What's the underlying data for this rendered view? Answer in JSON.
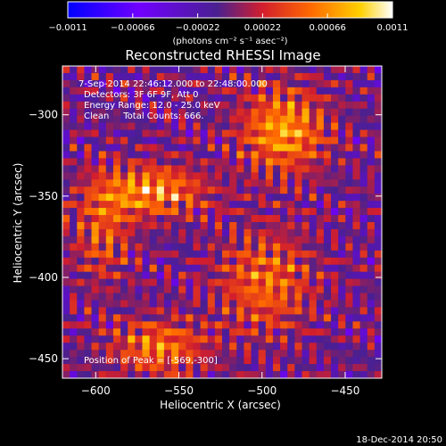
{
  "chart_data": {
    "type": "heatmap",
    "title": "Reconstructed RHESSI Image",
    "xlabel": "Heliocentric X (arcsec)",
    "ylabel": "Heliocentric Y (arcsec)",
    "xlim": [
      -620,
      -428
    ],
    "ylim": [
      -462,
      -270
    ],
    "xticks": [
      -600,
      -550,
      -500,
      -450
    ],
    "yticks": [
      -450,
      -400,
      -350,
      -300
    ],
    "xtick_labels": [
      "−600",
      "−550",
      "−500",
      "−450"
    ],
    "ytick_labels": [
      "−450",
      "−400",
      "−350",
      "−300"
    ],
    "colorbar": {
      "min": -0.0011,
      "max": 0.0011,
      "ticks": [
        -0.0011,
        -0.00066,
        -0.00022,
        0.00022,
        0.00066,
        0.0011
      ],
      "tick_labels": [
        "−0.0011",
        "−0.00066",
        "−0.00022",
        "0.00022",
        "0.00066",
        "0.0011"
      ],
      "label": "(photons cm⁻² s⁻¹ asec⁻²)",
      "stops": [
        "#0000ff",
        "#7000ff",
        "#4a2090",
        "#d21e2d",
        "#ff6a00",
        "#ffd000",
        "#ffffff"
      ]
    },
    "annotations": [
      "7-Sep-2014 22:46:12.000 to 22:48:00.000",
      "Detectors: 3F 6F 9F, Att 0",
      "Energy Range: 12.0 - 25.0 keV",
      "Clean     Total Counts: 666."
    ],
    "peak_label": "Position of Peak = [-569,-300]",
    "peak_position": [
      -569,
      -300
    ],
    "timestamp": "18-Dec-2014 20:50",
    "bright_regions": [
      {
        "x": -566,
        "y": -347,
        "sigma_x": 22,
        "sigma_y": 11,
        "peak": 0.00072
      },
      {
        "x": -487,
        "y": -310,
        "sigma_x": 18,
        "sigma_y": 18,
        "peak": 0.00075
      },
      {
        "x": -562,
        "y": -443,
        "sigma_x": 20,
        "sigma_y": 12,
        "peak": 0.0006
      },
      {
        "x": -498,
        "y": -403,
        "sigma_x": 20,
        "sigma_y": 22,
        "peak": 0.00055
      },
      {
        "x": -596,
        "y": -372,
        "sigma_x": 12,
        "sigma_y": 22,
        "peak": 0.00045
      }
    ]
  }
}
